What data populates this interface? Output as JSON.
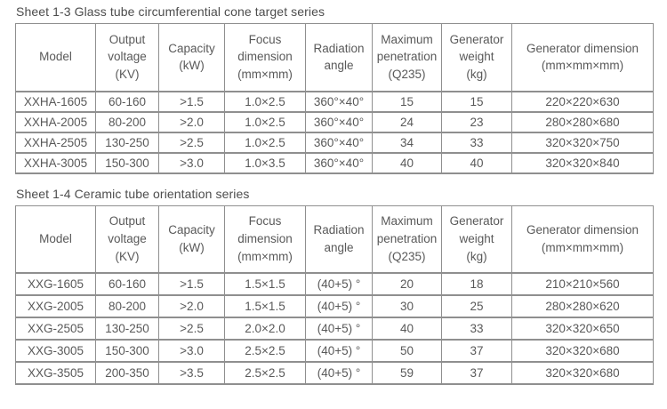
{
  "page": {
    "text_color": "#595959",
    "border_color": "#8f8f8f",
    "background_color": "#ffffff"
  },
  "tables": [
    {
      "title": "Sheet 1-3 Glass tube circumferential cone target series",
      "headers": [
        "Model",
        "Output\nvoltage\n(KV)",
        "Capacity\n(kW)",
        "Focus\ndimension\n(mm×mm)",
        "Radiation\nangle",
        "Maximum\npenetration\n(Q235)",
        "Generator\nweight\n(kg)",
        "Generator dimension\n(mm×mm×mm)"
      ],
      "rows": [
        [
          "XXHA-1605",
          "60-160",
          ">1.5",
          "1.0×2.5",
          "360°×40°",
          "15",
          "15",
          "220×220×630"
        ],
        [
          "XXHA-2005",
          "80-200",
          ">2.0",
          "1.0×2.5",
          "360°×40°",
          "24",
          "23",
          "280×280×680"
        ],
        [
          "XXHA-2505",
          "130-250",
          ">2.5",
          "1.0×2.5",
          "360°×40°",
          "34",
          "33",
          "320×320×750"
        ],
        [
          "XXHA-3005",
          "150-300",
          ">3.0",
          "1.0×3.5",
          "360°×40°",
          "40",
          "40",
          "320×320×840"
        ]
      ]
    },
    {
      "title": "Sheet 1-4 Ceramic tube orientation series",
      "headers": [
        "Model",
        "Output\nvoltage\n(KV)",
        "Capacity\n(kW)",
        "Focus\ndimension\n(mm×mm)",
        "Radiation\nangle",
        "Maximum\npenetration\n(Q235)",
        "Generator\nweight\n(kg)",
        "Generator dimension\n(mm×mm×mm)"
      ],
      "rows": [
        [
          "XXG-1605",
          "60-160",
          ">1.5",
          "1.5×1.5",
          "(40+5) °",
          "20",
          "18",
          "210×210×560"
        ],
        [
          "XXG-2005",
          "80-200",
          ">2.0",
          "1.5×1.5",
          "(40+5) °",
          "30",
          "25",
          "280×280×620"
        ],
        [
          "XXG-2505",
          "130-250",
          ">2.5",
          "2.0×2.0",
          "(40+5) °",
          "40",
          "33",
          "320×320×650"
        ],
        [
          "XXG-3005",
          "150-300",
          ">3.0",
          "2.5×2.5",
          "(40+5) °",
          "50",
          "37",
          "320×320×680"
        ],
        [
          "XXG-3505",
          "200-350",
          ">3.5",
          "2.5×2.5",
          "(40+5) °",
          "59",
          "37",
          "320×320×680"
        ]
      ]
    }
  ]
}
